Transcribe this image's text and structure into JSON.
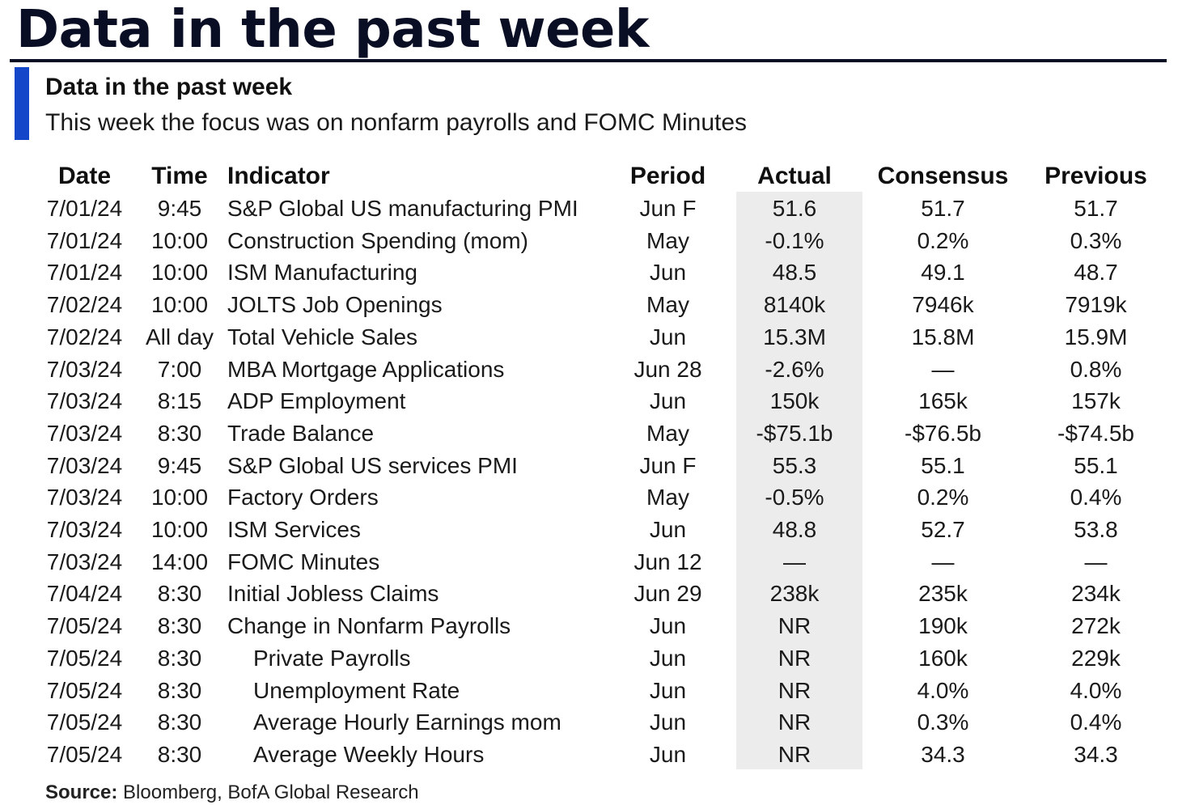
{
  "header": {
    "title": "Data in the past week"
  },
  "panel": {
    "subtitle": "Data in the past week",
    "description": "This week the focus was on nonfarm payrolls and FOMC Minutes"
  },
  "table": {
    "columns": [
      "Date",
      "Time",
      "Indicator",
      "Period",
      "Actual",
      "Consensus",
      "Previous"
    ],
    "rows": [
      {
        "date": "7/01/24",
        "time": "9:45",
        "indicator": "S&P Global US manufacturing PMI",
        "period": "Jun F",
        "actual": "51.6",
        "consensus": "51.7",
        "previous": "51.7"
      },
      {
        "date": "7/01/24",
        "time": "10:00",
        "indicator": "Construction Spending (mom)",
        "period": "May",
        "actual": "-0.1%",
        "consensus": "0.2%",
        "previous": "0.3%"
      },
      {
        "date": "7/01/24",
        "time": "10:00",
        "indicator": "ISM Manufacturing",
        "period": "Jun",
        "actual": "48.5",
        "consensus": "49.1",
        "previous": "48.7"
      },
      {
        "date": "7/02/24",
        "time": "10:00",
        "indicator": "JOLTS Job Openings",
        "period": "May",
        "actual": "8140k",
        "consensus": "7946k",
        "previous": "7919k"
      },
      {
        "date": "7/02/24",
        "time": "All day",
        "indicator": "Total Vehicle Sales",
        "period": "Jun",
        "actual": "15.3M",
        "consensus": "15.8M",
        "previous": "15.9M"
      },
      {
        "date": "7/03/24",
        "time": "7:00",
        "indicator": "MBA Mortgage Applications",
        "period": "Jun 28",
        "actual": "-2.6%",
        "consensus": "—",
        "previous": "0.8%"
      },
      {
        "date": "7/03/24",
        "time": "8:15",
        "indicator": "ADP Employment",
        "period": "Jun",
        "actual": "150k",
        "consensus": "165k",
        "previous": "157k"
      },
      {
        "date": "7/03/24",
        "time": "8:30",
        "indicator": "Trade Balance",
        "period": "May",
        "actual": "-$75.1b",
        "consensus": "-$76.5b",
        "previous": "-$74.5b"
      },
      {
        "date": "7/03/24",
        "time": "9:45",
        "indicator": "S&P Global US services PMI",
        "period": "Jun F",
        "actual": "55.3",
        "consensus": "55.1",
        "previous": "55.1"
      },
      {
        "date": "7/03/24",
        "time": "10:00",
        "indicator": "Factory Orders",
        "period": "May",
        "actual": "-0.5%",
        "consensus": "0.2%",
        "previous": "0.4%"
      },
      {
        "date": "7/03/24",
        "time": "10:00",
        "indicator": "ISM Services",
        "period": "Jun",
        "actual": "48.8",
        "consensus": "52.7",
        "previous": "53.8"
      },
      {
        "date": "7/03/24",
        "time": "14:00",
        "indicator": "FOMC Minutes",
        "period": "Jun 12",
        "actual": "—",
        "consensus": "—",
        "previous": "—"
      },
      {
        "date": "7/04/24",
        "time": "8:30",
        "indicator": "Initial Jobless Claims",
        "period": "Jun 29",
        "actual": "238k",
        "consensus": "235k",
        "previous": "234k"
      },
      {
        "date": "7/05/24",
        "time": "8:30",
        "indicator": "Change in Nonfarm Payrolls",
        "period": "Jun",
        "actual": "NR",
        "consensus": "190k",
        "previous": "272k"
      },
      {
        "date": "7/05/24",
        "time": "8:30",
        "indicator": "Private Payrolls",
        "period": "Jun",
        "actual": "NR",
        "consensus": "160k",
        "previous": "229k",
        "indent": true
      },
      {
        "date": "7/05/24",
        "time": "8:30",
        "indicator": "Unemployment Rate",
        "period": "Jun",
        "actual": "NR",
        "consensus": "4.0%",
        "previous": "4.0%",
        "indent": true
      },
      {
        "date": "7/05/24",
        "time": "8:30",
        "indicator": "Average Hourly Earnings mom",
        "period": "Jun",
        "actual": "NR",
        "consensus": "0.3%",
        "previous": "0.4%",
        "indent": true
      },
      {
        "date": "7/05/24",
        "time": "8:30",
        "indicator": "Average Weekly Hours",
        "period": "Jun",
        "actual": "NR",
        "consensus": "34.3",
        "previous": "34.3",
        "indent": true
      }
    ]
  },
  "footer": {
    "source_label": "Source:",
    "source_text": " Bloomberg, BofA Global Research"
  },
  "colors": {
    "accent": "#1346c8",
    "title": "#0a0e25",
    "actual_column_bg": "#ececec"
  }
}
